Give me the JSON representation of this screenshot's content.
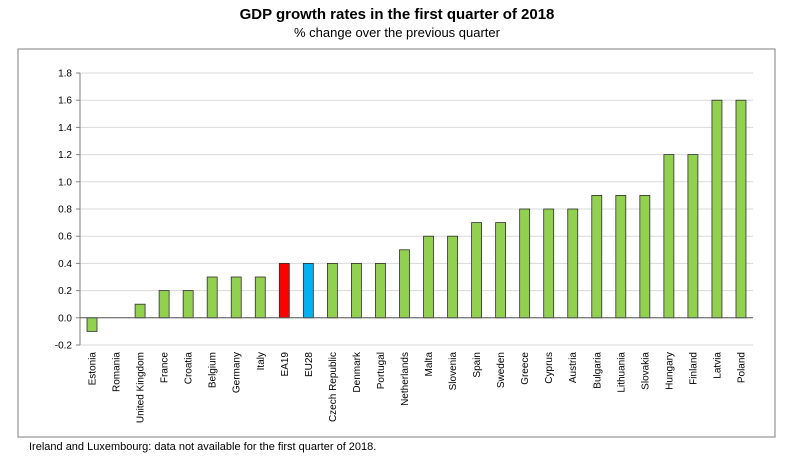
{
  "chart_data": {
    "type": "bar",
    "title": "GDP growth rates in the first quarter of 2018",
    "subtitle": "% change over the previous quarter",
    "categories": [
      "Estonia",
      "Romania",
      "United Kingdom",
      "France",
      "Croatia",
      "Belgium",
      "Germany",
      "Italy",
      "EA19",
      "EU28",
      "Czech Republic",
      "Denmark",
      "Portugal",
      "Netherlands",
      "Malta",
      "Slovenia",
      "Spain",
      "Sweden",
      "Greece",
      "Cyprus",
      "Austria",
      "Bulgaria",
      "Lithuania",
      "Slovakia",
      "Hungary",
      "Finland",
      "Latvia",
      "Poland"
    ],
    "values": [
      -0.1,
      0.0,
      0.1,
      0.2,
      0.2,
      0.3,
      0.3,
      0.3,
      0.4,
      0.4,
      0.4,
      0.4,
      0.4,
      0.5,
      0.6,
      0.6,
      0.7,
      0.7,
      0.8,
      0.8,
      0.8,
      0.9,
      0.9,
      0.9,
      1.2,
      1.2,
      1.6,
      1.6
    ],
    "ylim": [
      -0.2,
      1.8
    ],
    "yticks": [
      "-0.2",
      "0.0",
      "0.2",
      "0.4",
      "0.6",
      "0.8",
      "1.0",
      "1.2",
      "1.4",
      "1.6",
      "1.8"
    ],
    "grid": true,
    "colors": {
      "default": "#92D050",
      "EA19": "#FF0000",
      "EU28": "#00B0F0",
      "border": "#2E2E2E",
      "grid": "#D9D9D9"
    }
  },
  "footnote": "Ireland and Luxembourg: data not available for the first quarter of 2018."
}
